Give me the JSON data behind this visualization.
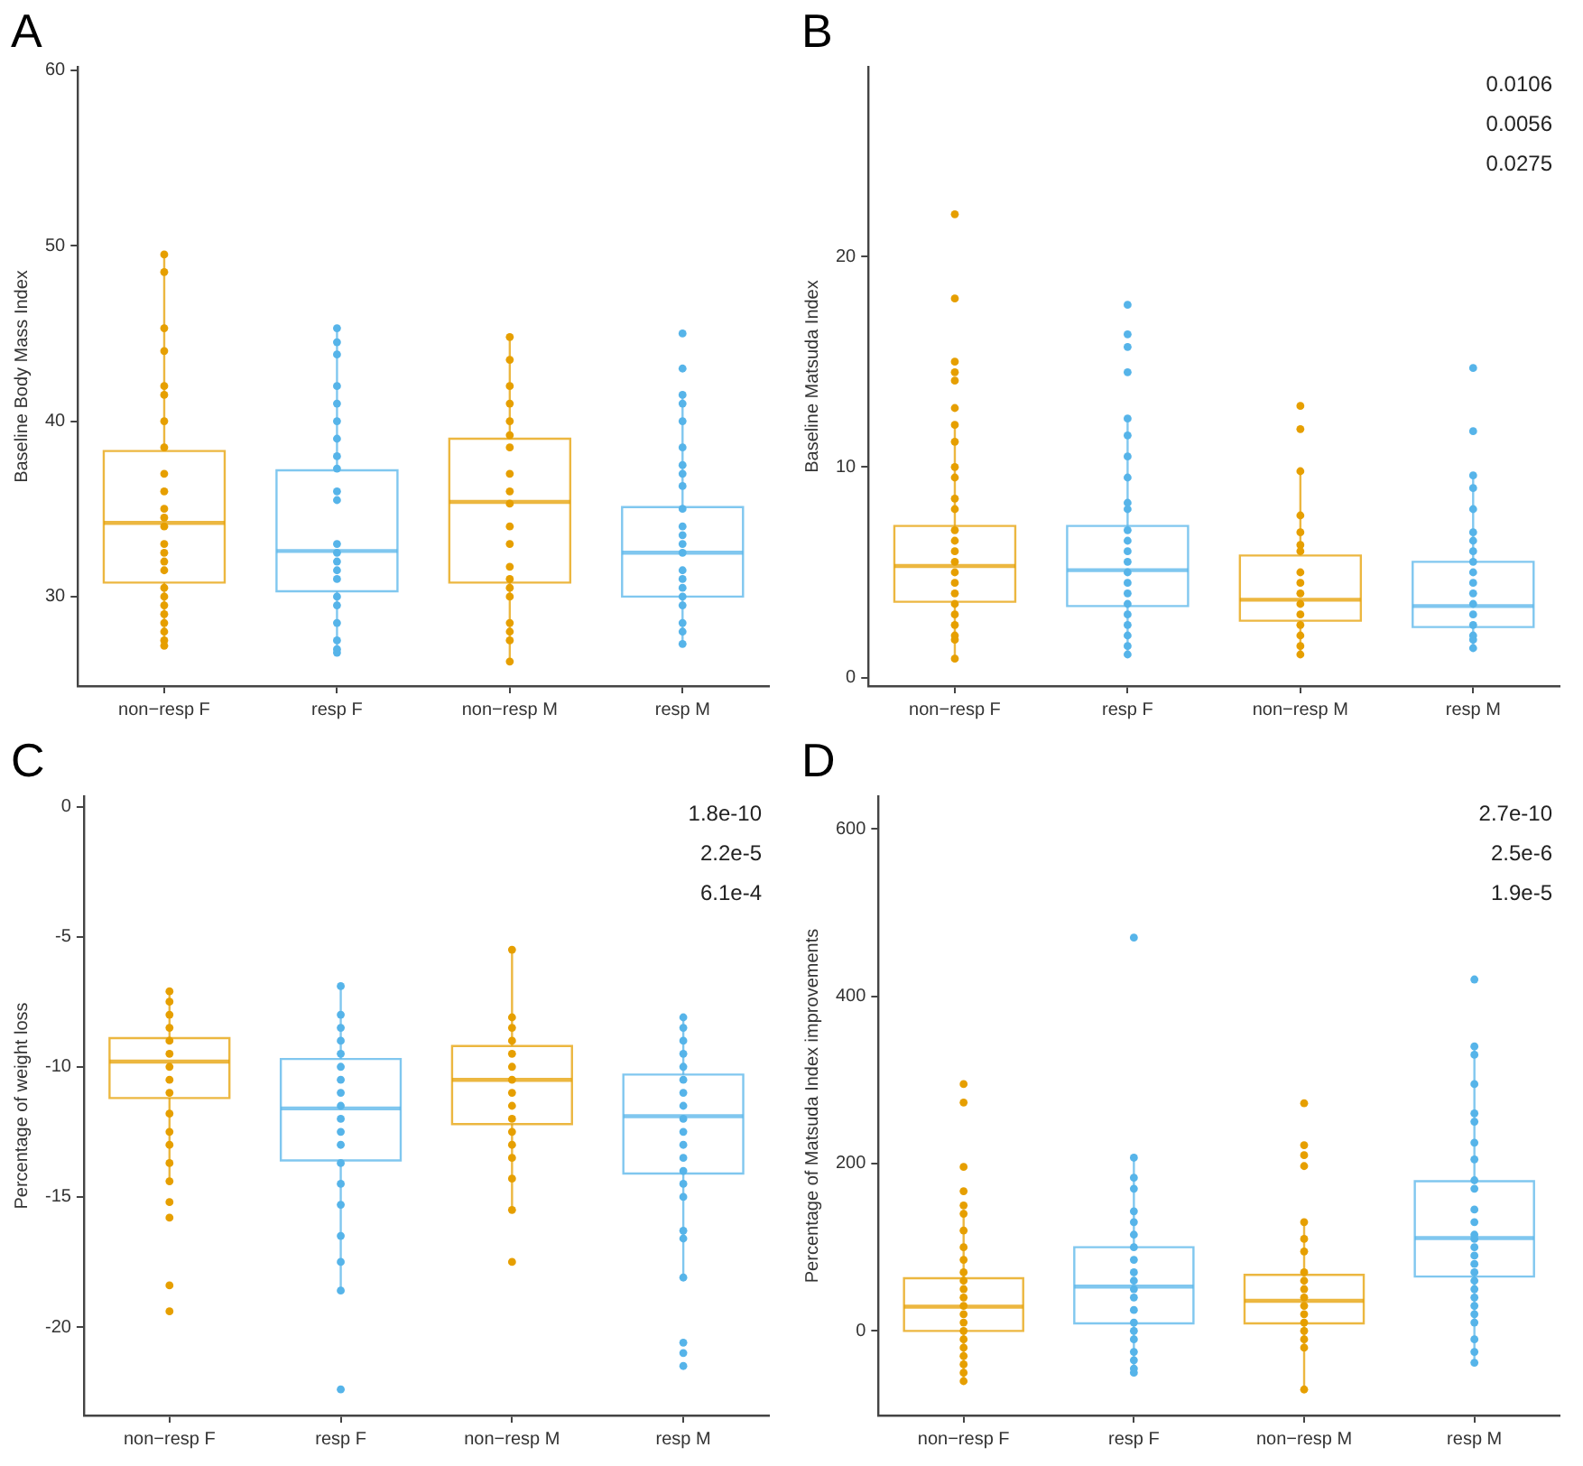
{
  "chart_data": [
    {
      "type": "box",
      "title": "A",
      "ylabel": "Baseline Body Mass Index",
      "categories": [
        "non−resp F",
        "resp F",
        "non−resp M",
        "resp M"
      ],
      "colors": [
        "#e69f00",
        "#56b4e9",
        "#e69f00",
        "#56b4e9"
      ],
      "ylim": [
        24.9,
        60.2
      ],
      "yticks": [
        30,
        40,
        50,
        60
      ],
      "grid": false,
      "legend": false,
      "marker": "circle",
      "boxes": [
        {
          "low": 27.1,
          "q1": 30.8,
          "median": 34.2,
          "q3": 38.3,
          "high": 49.5
        },
        {
          "low": 26.8,
          "q1": 30.3,
          "median": 32.6,
          "q3": 37.2,
          "high": 45.3
        },
        {
          "low": 26.3,
          "q1": 30.8,
          "median": 35.4,
          "q3": 39.0,
          "high": 44.8
        },
        {
          "low": 27.3,
          "q1": 30.0,
          "median": 32.5,
          "q3": 35.1,
          "high": 41.5
        }
      ],
      "series": [
        {
          "type": "scatter",
          "color": "#e69f00",
          "x": [
            "non−resp F",
            "non−resp F",
            "non−resp F",
            "non−resp F",
            "non−resp F",
            "non−resp F",
            "non−resp F",
            "non−resp F",
            "non−resp F",
            "non−resp F",
            "non−resp F",
            "non−resp F",
            "non−resp F",
            "non−resp F",
            "non−resp F",
            "non−resp F",
            "non−resp F",
            "non−resp F",
            "non−resp F",
            "non−resp F",
            "non−resp F",
            "non−resp F",
            "non−resp F",
            "non−resp F",
            "non−resp F"
          ],
          "values": [
            49.5,
            48.5,
            45.3,
            44,
            42,
            41.5,
            40,
            38.5,
            37,
            36,
            35,
            34.5,
            34,
            33,
            32.5,
            32,
            31.5,
            30.5,
            30,
            29.5,
            29,
            28.5,
            28,
            27.5,
            27.2
          ]
        },
        {
          "type": "scatter",
          "color": "#56b4e9",
          "x": [
            "resp F",
            "resp F",
            "resp F",
            "resp F",
            "resp F",
            "resp F",
            "resp F",
            "resp F",
            "resp F",
            "resp F",
            "resp F",
            "resp F",
            "resp F",
            "resp F",
            "resp F",
            "resp F",
            "resp F",
            "resp F",
            "resp F",
            "resp F",
            "resp F",
            "resp F"
          ],
          "values": [
            45.3,
            44.5,
            43.8,
            42,
            41,
            40,
            39,
            38,
            37.3,
            36,
            35.5,
            33,
            32.5,
            32,
            31.5,
            31,
            30,
            29.5,
            28.5,
            27.5,
            27,
            26.8
          ]
        },
        {
          "type": "scatter",
          "color": "#e69f00",
          "x": [
            "non−resp M",
            "non−resp M",
            "non−resp M",
            "non−resp M",
            "non−resp M",
            "non−resp M",
            "non−resp M",
            "non−resp M",
            "non−resp M",
            "non−resp M",
            "non−resp M",
            "non−resp M",
            "non−resp M",
            "non−resp M",
            "non−resp M",
            "non−resp M",
            "non−resp M",
            "non−resp M",
            "non−resp M",
            "non−resp M"
          ],
          "values": [
            44.8,
            43.5,
            42,
            41,
            40,
            39.2,
            38.5,
            37,
            36,
            35.3,
            34,
            33,
            31.7,
            31,
            30.5,
            30,
            28.5,
            28,
            27.5,
            26.3
          ]
        },
        {
          "type": "scatter",
          "color": "#56b4e9",
          "x": [
            "resp M",
            "resp M",
            "resp M",
            "resp M",
            "resp M",
            "resp M",
            "resp M",
            "resp M",
            "resp M",
            "resp M",
            "resp M",
            "resp M",
            "resp M",
            "resp M",
            "resp M",
            "resp M",
            "resp M",
            "resp M",
            "resp M",
            "resp M",
            "resp M",
            "resp M"
          ],
          "values": [
            45,
            43,
            41.5,
            41,
            40,
            38.5,
            37.5,
            37,
            36.3,
            35,
            34,
            33.5,
            33,
            32.5,
            31.5,
            31,
            30.5,
            30,
            29.5,
            28.5,
            28,
            27.3
          ]
        }
      ]
    },
    {
      "type": "box",
      "title": "B",
      "ylabel": "Baseline Matsuda Index",
      "categories": [
        "non−resp F",
        "resp F",
        "non−resp M",
        "resp M"
      ],
      "colors": [
        "#e69f00",
        "#56b4e9",
        "#e69f00",
        "#56b4e9"
      ],
      "ylim": [
        -0.4,
        29
      ],
      "yticks": [
        0,
        10,
        20
      ],
      "grid": false,
      "legend": false,
      "marker": "circle",
      "annotations": [
        "0.0106",
        "0.0056",
        "0.0275"
      ],
      "boxes": [
        {
          "low": 0.9,
          "q1": 3.6,
          "median": 5.3,
          "q3": 7.2,
          "high": 12
        },
        {
          "low": 1.1,
          "q1": 3.4,
          "median": 5.1,
          "q3": 7.2,
          "high": 12.3
        },
        {
          "low": 1.1,
          "q1": 2.7,
          "median": 3.7,
          "q3": 5.8,
          "high": 9.8
        },
        {
          "low": 1.4,
          "q1": 2.4,
          "median": 3.4,
          "q3": 5.5,
          "high": 9.6
        }
      ],
      "series": [
        {
          "type": "scatter",
          "color": "#e69f00",
          "x": [
            "non−resp F",
            "non−resp F",
            "non−resp F",
            "non−resp F",
            "non−resp F",
            "non−resp F",
            "non−resp F",
            "non−resp F",
            "non−resp F",
            "non−resp F",
            "non−resp F",
            "non−resp F",
            "non−resp F",
            "non−resp F",
            "non−resp F",
            "non−resp F",
            "non−resp F",
            "non−resp F",
            "non−resp F",
            "non−resp F",
            "non−resp F",
            "non−resp F",
            "non−resp F",
            "non−resp F",
            "non−resp F"
          ],
          "values": [
            22,
            18,
            15,
            14.5,
            14.1,
            12.8,
            12,
            11.2,
            10,
            9.5,
            8.5,
            8,
            7,
            6.5,
            6,
            5.5,
            5,
            4.5,
            4,
            3.5,
            3,
            2.5,
            2,
            1.8,
            0.9
          ]
        },
        {
          "type": "scatter",
          "color": "#56b4e9",
          "x": [
            "resp F",
            "resp F",
            "resp F",
            "resp F",
            "resp F",
            "resp F",
            "resp F",
            "resp F",
            "resp F",
            "resp F",
            "resp F",
            "resp F",
            "resp F",
            "resp F",
            "resp F",
            "resp F",
            "resp F",
            "resp F",
            "resp F",
            "resp F",
            "resp F",
            "resp F",
            "resp F"
          ],
          "values": [
            17.7,
            16.3,
            15.7,
            14.5,
            12.3,
            11.5,
            10.5,
            9.5,
            8.3,
            8,
            7,
            6.5,
            6,
            5.5,
            5,
            4.5,
            4,
            3.5,
            3,
            2.5,
            2,
            1.5,
            1.1
          ]
        },
        {
          "type": "scatter",
          "color": "#e69f00",
          "x": [
            "non−resp M",
            "non−resp M",
            "non−resp M",
            "non−resp M",
            "non−resp M",
            "non−resp M",
            "non−resp M",
            "non−resp M",
            "non−resp M",
            "non−resp M",
            "non−resp M",
            "non−resp M",
            "non−resp M",
            "non−resp M",
            "non−resp M",
            "non−resp M"
          ],
          "values": [
            12.9,
            11.8,
            9.8,
            7.7,
            6.9,
            6.3,
            6,
            5,
            4.5,
            4,
            3.5,
            3,
            2.5,
            2,
            1.5,
            1.1
          ]
        },
        {
          "type": "scatter",
          "color": "#56b4e9",
          "x": [
            "resp M",
            "resp M",
            "resp M",
            "resp M",
            "resp M",
            "resp M",
            "resp M",
            "resp M",
            "resp M",
            "resp M",
            "resp M",
            "resp M",
            "resp M",
            "resp M",
            "resp M",
            "resp M",
            "resp M",
            "resp M"
          ],
          "values": [
            14.7,
            11.7,
            9.6,
            9,
            8,
            6.9,
            6.5,
            6,
            5.5,
            5,
            4.5,
            4,
            3.5,
            3,
            2.5,
            2,
            1.8,
            1.4
          ]
        }
      ]
    },
    {
      "type": "box",
      "title": "C",
      "ylabel": "Percentage of weight loss",
      "categories": [
        "non−resp F",
        "resp F",
        "non−resp M",
        "resp M"
      ],
      "colors": [
        "#e69f00",
        "#56b4e9",
        "#e69f00",
        "#56b4e9"
      ],
      "ylim": [
        -23.4,
        0.4
      ],
      "yticks": [
        -20,
        -15,
        -10,
        -5,
        0
      ],
      "grid": false,
      "legend": false,
      "marker": "circle",
      "annotations": [
        "1.8e-10",
        "2.2e-5",
        "6.1e-4"
      ],
      "boxes": [
        {
          "low": -14.4,
          "q1": -11.2,
          "median": -9.8,
          "q3": -8.9,
          "high": -7.1
        },
        {
          "low": -18.6,
          "q1": -13.6,
          "median": -11.6,
          "q3": -9.7,
          "high": -6.9
        },
        {
          "low": -15.5,
          "q1": -12.2,
          "median": -10.5,
          "q3": -9.2,
          "high": -5.5
        },
        {
          "low": -18.1,
          "q1": -14.1,
          "median": -11.9,
          "q3": -10.3,
          "high": -8.1
        }
      ],
      "series": [
        {
          "type": "scatter",
          "color": "#e69f00",
          "x": [
            "non−resp F",
            "non−resp F",
            "non−resp F",
            "non−resp F",
            "non−resp F",
            "non−resp F",
            "non−resp F",
            "non−resp F",
            "non−resp F",
            "non−resp F",
            "non−resp F",
            "non−resp F",
            "non−resp F",
            "non−resp F",
            "non−resp F",
            "non−resp F",
            "non−resp F",
            "non−resp F"
          ],
          "values": [
            -7.1,
            -7.5,
            -8,
            -8.5,
            -9,
            -9.5,
            -10,
            -10.5,
            -11,
            -11.8,
            -12.5,
            -13,
            -13.7,
            -14.4,
            -15.2,
            -15.8,
            -18.4,
            -19.4
          ]
        },
        {
          "type": "scatter",
          "color": "#56b4e9",
          "x": [
            "resp F",
            "resp F",
            "resp F",
            "resp F",
            "resp F",
            "resp F",
            "resp F",
            "resp F",
            "resp F",
            "resp F",
            "resp F",
            "resp F",
            "resp F",
            "resp F",
            "resp F",
            "resp F",
            "resp F",
            "resp F",
            "resp F"
          ],
          "values": [
            -6.9,
            -8,
            -8.5,
            -9,
            -9.5,
            -10,
            -10.5,
            -11,
            -11.5,
            -12,
            -12.5,
            -13,
            -13.7,
            -14.5,
            -15.3,
            -16.5,
            -17.5,
            -18.6,
            -22.4
          ]
        },
        {
          "type": "scatter",
          "color": "#e69f00",
          "x": [
            "non−resp M",
            "non−resp M",
            "non−resp M",
            "non−resp M",
            "non−resp M",
            "non−resp M",
            "non−resp M",
            "non−resp M",
            "non−resp M",
            "non−resp M",
            "non−resp M",
            "non−resp M",
            "non−resp M",
            "non−resp M",
            "non−resp M",
            "non−resp M"
          ],
          "values": [
            -5.5,
            -8.1,
            -8.5,
            -9,
            -9.5,
            -10,
            -10.5,
            -11,
            -11.5,
            -12,
            -12.5,
            -13,
            -13.5,
            -14.3,
            -15.5,
            -17.5
          ]
        },
        {
          "type": "scatter",
          "color": "#56b4e9",
          "x": [
            "resp M",
            "resp M",
            "resp M",
            "resp M",
            "resp M",
            "resp M",
            "resp M",
            "resp M",
            "resp M",
            "resp M",
            "resp M",
            "resp M",
            "resp M",
            "resp M",
            "resp M",
            "resp M",
            "resp M",
            "resp M",
            "resp M",
            "resp M",
            "resp M"
          ],
          "values": [
            -8.1,
            -8.5,
            -9,
            -9.5,
            -10,
            -10.5,
            -11,
            -11.5,
            -12,
            -12.5,
            -13,
            -13.5,
            -14,
            -14.5,
            -15,
            -16.3,
            -16.6,
            -18.1,
            -20.6,
            -21,
            -21.5
          ]
        }
      ]
    },
    {
      "type": "box",
      "title": "D",
      "ylabel": "Percentage of Matsuda Index improvements",
      "categories": [
        "non−resp F",
        "resp F",
        "non−resp M",
        "resp M"
      ],
      "colors": [
        "#e69f00",
        "#56b4e9",
        "#e69f00",
        "#56b4e9"
      ],
      "ylim": [
        -101,
        639
      ],
      "yticks": [
        0,
        200,
        400,
        600
      ],
      "grid": false,
      "legend": false,
      "marker": "circle",
      "annotations": [
        "2.7e-10",
        "2.5e-6",
        "1.9e-5"
      ],
      "boxes": [
        {
          "low": -60,
          "q1": 0,
          "median": 29,
          "q3": 63,
          "high": 145
        },
        {
          "low": -50,
          "q1": 9,
          "median": 53,
          "q3": 100,
          "high": 207
        },
        {
          "low": -70,
          "q1": 9,
          "median": 36,
          "q3": 67,
          "high": 130
        },
        {
          "low": -38,
          "q1": 65,
          "median": 111,
          "q3": 179,
          "high": 340
        }
      ],
      "series": [
        {
          "type": "scatter",
          "color": "#e69f00",
          "x": [
            "non−resp F",
            "non−resp F",
            "non−resp F",
            "non−resp F",
            "non−resp F",
            "non−resp F",
            "non−resp F",
            "non−resp F",
            "non−resp F",
            "non−resp F",
            "non−resp F",
            "non−resp F",
            "non−resp F",
            "non−resp F",
            "non−resp F",
            "non−resp F",
            "non−resp F",
            "non−resp F",
            "non−resp F",
            "non−resp F",
            "non−resp F",
            "non−resp F",
            "non−resp F"
          ],
          "values": [
            295,
            273,
            196,
            167,
            150,
            140,
            120,
            100,
            85,
            70,
            60,
            50,
            40,
            30,
            20,
            10,
            0,
            -10,
            -20,
            -30,
            -40,
            -50,
            -60
          ]
        },
        {
          "type": "scatter",
          "color": "#56b4e9",
          "x": [
            "resp F",
            "resp F",
            "resp F",
            "resp F",
            "resp F",
            "resp F",
            "resp F",
            "resp F",
            "resp F",
            "resp F",
            "resp F",
            "resp F",
            "resp F",
            "resp F",
            "resp F",
            "resp F",
            "resp F",
            "resp F",
            "resp F",
            "resp F",
            "resp F"
          ],
          "values": [
            470,
            207,
            183,
            170,
            143,
            130,
            115,
            100,
            85,
            70,
            60,
            50,
            40,
            25,
            10,
            0,
            -10,
            -25,
            -35,
            -45,
            -50
          ]
        },
        {
          "type": "scatter",
          "color": "#e69f00",
          "x": [
            "non−resp M",
            "non−resp M",
            "non−resp M",
            "non−resp M",
            "non−resp M",
            "non−resp M",
            "non−resp M",
            "non−resp M",
            "non−resp M",
            "non−resp M",
            "non−resp M",
            "non−resp M",
            "non−resp M",
            "non−resp M",
            "non−resp M",
            "non−resp M",
            "non−resp M",
            "non−resp M"
          ],
          "values": [
            272,
            222,
            210,
            197,
            130,
            110,
            95,
            70,
            60,
            50,
            40,
            30,
            20,
            10,
            0,
            -10,
            -20,
            -70
          ]
        },
        {
          "type": "scatter",
          "color": "#56b4e9",
          "x": [
            "resp M",
            "resp M",
            "resp M",
            "resp M",
            "resp M",
            "resp M",
            "resp M",
            "resp M",
            "resp M",
            "resp M",
            "resp M",
            "resp M",
            "resp M",
            "resp M",
            "resp M",
            "resp M",
            "resp M",
            "resp M",
            "resp M",
            "resp M",
            "resp M",
            "resp M",
            "resp M",
            "resp M",
            "resp M",
            "resp M",
            "resp M"
          ],
          "values": [
            420,
            340,
            330,
            295,
            260,
            250,
            225,
            205,
            180,
            170,
            145,
            130,
            115,
            110,
            100,
            90,
            80,
            70,
            60,
            50,
            40,
            30,
            20,
            10,
            -10,
            -25,
            -38
          ]
        }
      ]
    }
  ]
}
